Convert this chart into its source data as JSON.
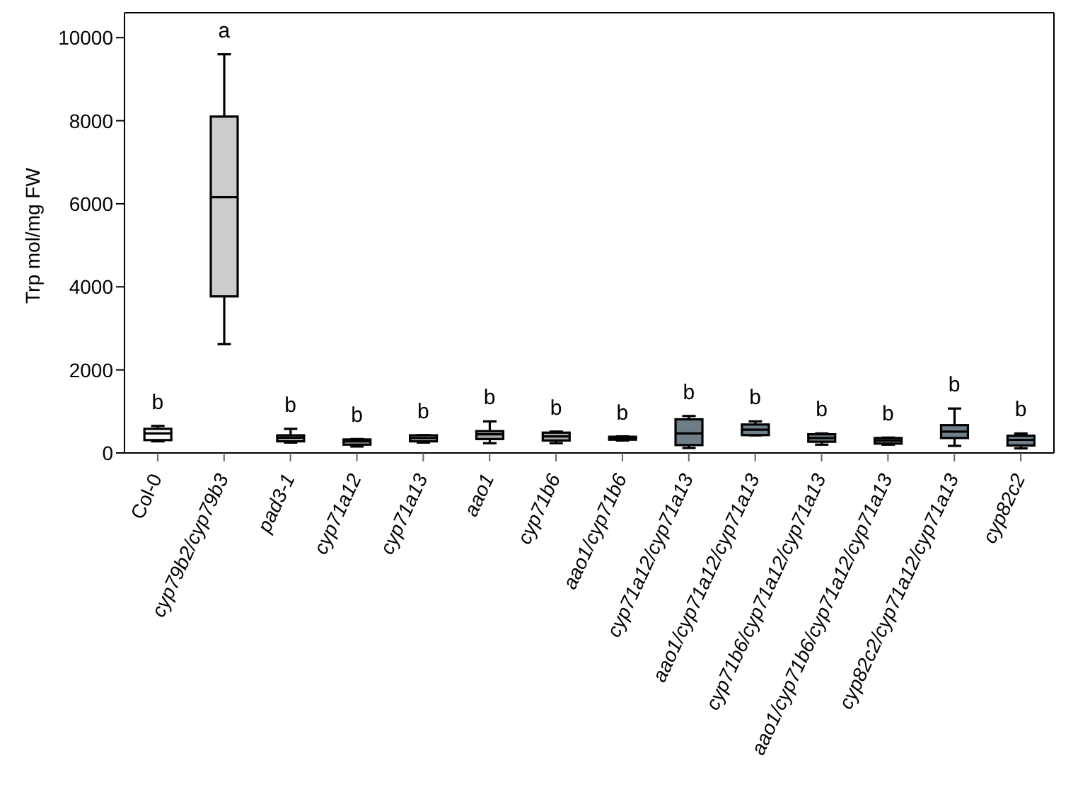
{
  "chart_data": {
    "type": "box",
    "ylabel": "Trp mol/mg FW",
    "categories": [
      "Col-0",
      "cyp79b2/cyp79b3",
      "pad3-1",
      "cyp71a12",
      "cyp71a13",
      "aao1",
      "cyp71b6",
      "aao1/cyp71b6",
      "cyp71a12/cyp71a13",
      "aao1/cyp71a12/cyp71a13",
      "cyp71b6/cyp71a12/cyp71a13",
      "aao1/cyp71b6/cyp71a12/cyp71a13",
      "cyp82c2/cyp71a12/cyp71a13",
      "cyp82c2"
    ],
    "boxes": [
      {
        "low": 280,
        "q1": 310,
        "median": 470,
        "q3": 580,
        "high": 650
      },
      {
        "low": 2620,
        "q1": 3770,
        "median": 6160,
        "q3": 8100,
        "high": 9600
      },
      {
        "low": 250,
        "q1": 280,
        "median": 370,
        "q3": 425,
        "high": 580
      },
      {
        "low": 155,
        "q1": 200,
        "median": 280,
        "q3": 325,
        "high": 335
      },
      {
        "low": 250,
        "q1": 280,
        "median": 360,
        "q3": 425,
        "high": 430
      },
      {
        "low": 235,
        "q1": 335,
        "median": 450,
        "q3": 525,
        "high": 760
      },
      {
        "low": 235,
        "q1": 300,
        "median": 400,
        "q3": 490,
        "high": 515
      },
      {
        "low": 300,
        "q1": 320,
        "median": 360,
        "q3": 390,
        "high": 400
      },
      {
        "low": 120,
        "q1": 190,
        "median": 470,
        "q3": 810,
        "high": 890
      },
      {
        "low": 425,
        "q1": 430,
        "median": 560,
        "q3": 685,
        "high": 760
      },
      {
        "low": 200,
        "q1": 270,
        "median": 360,
        "q3": 450,
        "high": 470
      },
      {
        "low": 200,
        "q1": 225,
        "median": 300,
        "q3": 360,
        "high": 370
      },
      {
        "low": 170,
        "q1": 360,
        "median": 515,
        "q3": 670,
        "high": 1070
      },
      {
        "low": 110,
        "q1": 180,
        "median": 315,
        "q3": 415,
        "high": 470
      }
    ],
    "colors": [
      "#ffffff",
      "#cccccc",
      "#a9a9a9",
      "#a9a9a9",
      "#a9a9a9",
      "#a9a9a9",
      "#a9a9a9",
      "#a9a9a9",
      "#6f7f89",
      "#6f7f89",
      "#6f7f89",
      "#6f7f89",
      "#6f7f89",
      "#6f7f89"
    ],
    "ylim": [
      0,
      10600
    ],
    "yticks": [
      0,
      2000,
      4000,
      6000,
      8000,
      10000
    ],
    "grid": false,
    "annotations": [
      "b",
      "a",
      "b",
      "b",
      "b",
      "b",
      "b",
      "b",
      "b",
      "b",
      "b",
      "b",
      "b",
      "b"
    ]
  }
}
